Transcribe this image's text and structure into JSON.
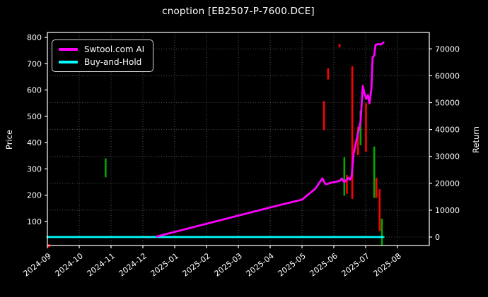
{
  "colors": {
    "background": "#000000",
    "text": "#ffffff",
    "grid": "#555555",
    "spine": "#ffffff",
    "ai_line": "#ff00ff",
    "buyhold_line": "#00ffff",
    "bar_red": "#ff0000",
    "bar_green": "#00aa00"
  },
  "legend": {
    "items": [
      {
        "label": "Swtool.com AI",
        "color": "#ff00ff"
      },
      {
        "label": "Buy-and-Hold",
        "color": "#00ffff"
      }
    ]
  },
  "chart_data": {
    "type": "line",
    "title": "cnoption [EB2507-P-7600.DCE]",
    "xlabel": "",
    "x_unit": "months since 2024-09 tick",
    "x_tick_labels": [
      "2024-09",
      "2024-10",
      "2024-11",
      "2024-12",
      "2025-01",
      "2025-02",
      "2025-03",
      "2025-04",
      "2025-05",
      "2025-06",
      "2025-07",
      "2025-08"
    ],
    "x_range": [
      0,
      12
    ],
    "grid": "dotted, aligned to right-axis ticks and month ticks",
    "legend_position": "upper left",
    "y_left": {
      "label": "Price",
      "ticks": [
        100,
        200,
        300,
        400,
        500,
        600,
        700,
        800
      ],
      "range": [
        8,
        819
      ]
    },
    "y_right": {
      "label": "Return",
      "ticks": [
        0,
        10000,
        20000,
        30000,
        40000,
        50000,
        60000,
        70000
      ],
      "range": [
        -3100,
        76100
      ]
    },
    "series": [
      {
        "name": "Swtool.com AI",
        "axis": "right",
        "color": "#ff00ff",
        "points": [
          [
            3.44,
            200
          ],
          [
            7.33,
            12000
          ],
          [
            8.0,
            13900
          ],
          [
            8.42,
            18000
          ],
          [
            8.64,
            21800
          ],
          [
            8.73,
            19800
          ],
          [
            8.78,
            19700
          ],
          [
            8.91,
            20200
          ],
          [
            9.05,
            20500
          ],
          [
            9.2,
            21000
          ],
          [
            9.25,
            21800
          ],
          [
            9.33,
            20400
          ],
          [
            9.46,
            22100
          ],
          [
            9.51,
            21300
          ],
          [
            9.56,
            22500
          ],
          [
            9.62,
            31000
          ],
          [
            9.73,
            37000
          ],
          [
            9.84,
            43000
          ],
          [
            9.91,
            56200
          ],
          [
            9.96,
            53500
          ],
          [
            10.02,
            51400
          ],
          [
            10.07,
            52800
          ],
          [
            10.12,
            49700
          ],
          [
            10.18,
            55000
          ],
          [
            10.22,
            66800
          ],
          [
            10.27,
            67500
          ],
          [
            10.31,
            71500
          ],
          [
            10.4,
            71800
          ],
          [
            10.48,
            71600
          ],
          [
            10.56,
            72400
          ]
        ]
      },
      {
        "name": "Buy-and-Hold",
        "axis": "right",
        "color": "#00ffff",
        "points": [
          [
            0,
            0
          ],
          [
            10.56,
            0
          ]
        ]
      }
    ],
    "price_bars": [
      {
        "t": 0.05,
        "low": 2,
        "high": 14,
        "color": "red"
      },
      {
        "t": 1.83,
        "low": 268,
        "high": 340,
        "color": "green"
      },
      {
        "t": 8.69,
        "low": 448,
        "high": 558,
        "color": "red"
      },
      {
        "t": 8.82,
        "low": 640,
        "high": 682,
        "color": "red"
      },
      {
        "t": 9.18,
        "low": 762,
        "high": 775,
        "color": "red"
      },
      {
        "t": 9.33,
        "low": 198,
        "high": 344,
        "color": "green"
      },
      {
        "t": 9.41,
        "low": 205,
        "high": 277,
        "color": "red"
      },
      {
        "t": 9.58,
        "low": 186,
        "high": 690,
        "color": "red"
      },
      {
        "t": 9.76,
        "low": 352,
        "high": 460,
        "color": "red"
      },
      {
        "t": 9.84,
        "low": 390,
        "high": 521,
        "color": "green"
      },
      {
        "t": 10.01,
        "low": 365,
        "high": 550,
        "color": "red"
      },
      {
        "t": 10.27,
        "low": 190,
        "high": 385,
        "color": "green"
      },
      {
        "t": 10.34,
        "low": 190,
        "high": 266,
        "color": "red"
      },
      {
        "t": 10.44,
        "low": 64,
        "high": 223,
        "color": "red"
      },
      {
        "t": 10.51,
        "low": 10,
        "high": 111,
        "color": "green"
      }
    ]
  }
}
